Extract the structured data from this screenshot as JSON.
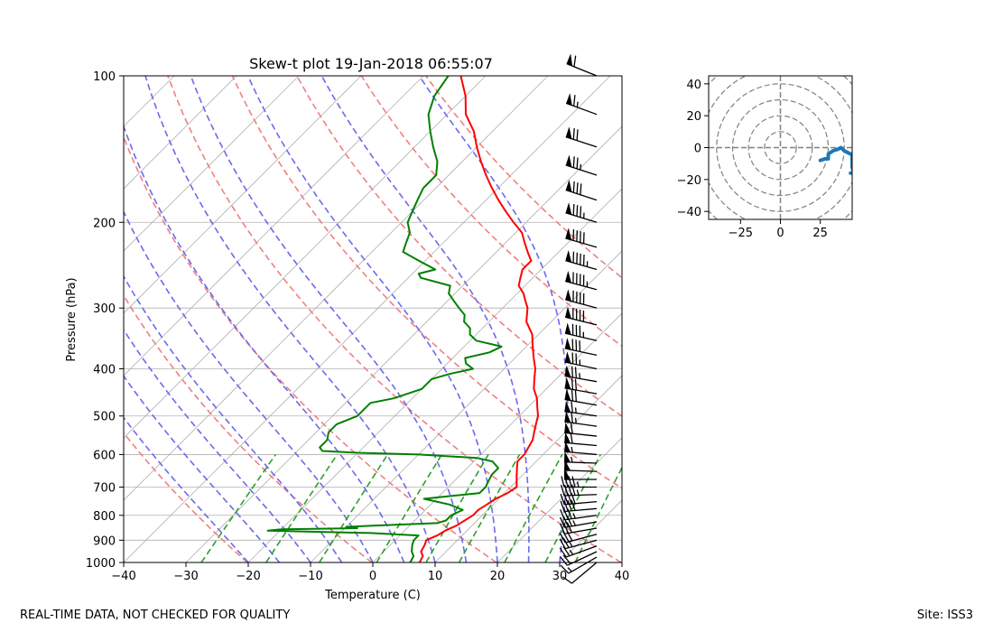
{
  "chart_data": [
    {
      "type": "line",
      "title": "Skew-t plot 19-Jan-2018 06:55:07",
      "xlabel": "Temperature (C)",
      "ylabel": "Pressure (hPa)",
      "x_ticks": [
        -40,
        -30,
        -20,
        -10,
        0,
        10,
        20,
        30,
        40
      ],
      "y_ticks": [
        100,
        200,
        300,
        400,
        500,
        600,
        700,
        800,
        900,
        1000
      ],
      "xlim": [
        -40,
        40
      ],
      "ylim": [
        1000,
        100
      ],
      "y_scale": "log",
      "grid": true,
      "isotherm_skew_degrees": 45,
      "dry_adiabat_theta_K": [
        253,
        273,
        293,
        313,
        333,
        353,
        373,
        393
      ],
      "moist_adiabat_start_temp_C": [
        -20,
        -15,
        -10,
        -5,
        0,
        5,
        10,
        15,
        20,
        25,
        30
      ],
      "mixing_ratio_g_per_kg": [
        0.4,
        1,
        2,
        4,
        7,
        10,
        16,
        24,
        32
      ],
      "series": [
        {
          "color": "#ff0000",
          "points": [
            [
              1000,
              7.5
            ],
            [
              970,
              7
            ],
            [
              950,
              6
            ],
            [
              920,
              5.5
            ],
            [
              900,
              5
            ],
            [
              880,
              6
            ],
            [
              860,
              6.5
            ],
            [
              840,
              7.5
            ],
            [
              820,
              8
            ],
            [
              800,
              8.5
            ],
            [
              780,
              8.5
            ],
            [
              760,
              9
            ],
            [
              740,
              9.5
            ],
            [
              720,
              10.5
            ],
            [
              700,
              11
            ],
            [
              680,
              10
            ],
            [
              660,
              9
            ],
            [
              640,
              8
            ],
            [
              620,
              7
            ],
            [
              600,
              7
            ],
            [
              580,
              6.5
            ],
            [
              560,
              6
            ],
            [
              540,
              5
            ],
            [
              520,
              4
            ],
            [
              500,
              3
            ],
            [
              480,
              1.5
            ],
            [
              460,
              0
            ],
            [
              440,
              -2
            ],
            [
              420,
              -3.5
            ],
            [
              400,
              -5
            ],
            [
              380,
              -7
            ],
            [
              360,
              -9
            ],
            [
              340,
              -11
            ],
            [
              320,
              -14
            ],
            [
              300,
              -16
            ],
            [
              290,
              -17.5
            ],
            [
              280,
              -19
            ],
            [
              270,
              -21
            ],
            [
              260,
              -22
            ],
            [
              250,
              -23
            ],
            [
              240,
              -23
            ],
            [
              230,
              -25
            ],
            [
              220,
              -27
            ],
            [
              210,
              -29
            ],
            [
              200,
              -32
            ],
            [
              190,
              -35
            ],
            [
              180,
              -38
            ],
            [
              170,
              -41
            ],
            [
              160,
              -44
            ],
            [
              150,
              -47
            ],
            [
              140,
              -50
            ],
            [
              130,
              -53
            ],
            [
              120,
              -57
            ],
            [
              110,
              -60
            ],
            [
              100,
              -64
            ]
          ]
        },
        {
          "color": "#008000",
          "points": [
            [
              1000,
              6
            ],
            [
              970,
              5.5
            ],
            [
              950,
              4.5
            ],
            [
              920,
              3.5
            ],
            [
              900,
              3
            ],
            [
              880,
              3
            ],
            [
              870,
              -5
            ],
            [
              860,
              -22
            ],
            [
              855,
              -20
            ],
            [
              850,
              -8
            ],
            [
              845,
              -10
            ],
            [
              840,
              -6
            ],
            [
              830,
              4
            ],
            [
              820,
              5
            ],
            [
              800,
              5
            ],
            [
              780,
              6
            ],
            [
              760,
              3
            ],
            [
              740,
              -2
            ],
            [
              730,
              2
            ],
            [
              720,
              6
            ],
            [
              700,
              6
            ],
            [
              680,
              5.5
            ],
            [
              660,
              5
            ],
            [
              640,
              5
            ],
            [
              620,
              3
            ],
            [
              610,
              0
            ],
            [
              600,
              -10
            ],
            [
              595,
              -20
            ],
            [
              590,
              -26
            ],
            [
              580,
              -27
            ],
            [
              560,
              -27
            ],
            [
              540,
              -28
            ],
            [
              520,
              -28
            ],
            [
              500,
              -26
            ],
            [
              480,
              -26
            ],
            [
              470,
              -26
            ],
            [
              460,
              -23
            ],
            [
              440,
              -20
            ],
            [
              420,
              -20
            ],
            [
              410,
              -18
            ],
            [
              400,
              -15
            ],
            [
              390,
              -17
            ],
            [
              380,
              -18
            ],
            [
              370,
              -15
            ],
            [
              360,
              -14
            ],
            [
              350,
              -19
            ],
            [
              340,
              -21
            ],
            [
              330,
              -22
            ],
            [
              320,
              -24
            ],
            [
              310,
              -25
            ],
            [
              300,
              -27
            ],
            [
              290,
              -29
            ],
            [
              280,
              -31
            ],
            [
              270,
              -32
            ],
            [
              260,
              -38
            ],
            [
              255,
              -39
            ],
            [
              250,
              -37
            ],
            [
              240,
              -41
            ],
            [
              230,
              -45
            ],
            [
              220,
              -46
            ],
            [
              210,
              -47
            ],
            [
              200,
              -49
            ],
            [
              190,
              -50
            ],
            [
              180,
              -51
            ],
            [
              170,
              -52
            ],
            [
              160,
              -52
            ],
            [
              150,
              -54
            ],
            [
              140,
              -57
            ],
            [
              130,
              -60
            ],
            [
              120,
              -63
            ],
            [
              110,
              -65
            ],
            [
              100,
              -66
            ]
          ]
        }
      ],
      "wind_barbs": [
        {
          "p": 1000,
          "spd": 10,
          "dir": 230
        },
        {
          "p": 975,
          "spd": 15,
          "dir": 240
        },
        {
          "p": 950,
          "spd": 20,
          "dir": 245
        },
        {
          "p": 925,
          "spd": 25,
          "dir": 250
        },
        {
          "p": 900,
          "spd": 25,
          "dir": 255
        },
        {
          "p": 875,
          "spd": 30,
          "dir": 255
        },
        {
          "p": 850,
          "spd": 30,
          "dir": 260
        },
        {
          "p": 825,
          "spd": 35,
          "dir": 260
        },
        {
          "p": 800,
          "spd": 35,
          "dir": 262
        },
        {
          "p": 775,
          "spd": 40,
          "dir": 265
        },
        {
          "p": 750,
          "spd": 40,
          "dir": 265
        },
        {
          "p": 725,
          "spd": 45,
          "dir": 268
        },
        {
          "p": 700,
          "spd": 45,
          "dir": 270
        },
        {
          "p": 675,
          "spd": 50,
          "dir": 270
        },
        {
          "p": 650,
          "spd": 50,
          "dir": 272
        },
        {
          "p": 625,
          "spd": 55,
          "dir": 272
        },
        {
          "p": 600,
          "spd": 55,
          "dir": 275
        },
        {
          "p": 575,
          "spd": 60,
          "dir": 275
        },
        {
          "p": 550,
          "spd": 60,
          "dir": 276
        },
        {
          "p": 525,
          "spd": 65,
          "dir": 278
        },
        {
          "p": 500,
          "spd": 65,
          "dir": 278
        },
        {
          "p": 475,
          "spd": 70,
          "dir": 280
        },
        {
          "p": 450,
          "spd": 70,
          "dir": 280
        },
        {
          "p": 425,
          "spd": 75,
          "dir": 280
        },
        {
          "p": 400,
          "spd": 75,
          "dir": 282
        },
        {
          "p": 375,
          "spd": 80,
          "dir": 282
        },
        {
          "p": 350,
          "spd": 85,
          "dir": 283
        },
        {
          "p": 325,
          "spd": 90,
          "dir": 284
        },
        {
          "p": 300,
          "spd": 90,
          "dir": 285
        },
        {
          "p": 275,
          "spd": 95,
          "dir": 285
        },
        {
          "p": 250,
          "spd": 95,
          "dir": 286
        },
        {
          "p": 225,
          "spd": 90,
          "dir": 286
        },
        {
          "p": 200,
          "spd": 85,
          "dir": 287
        },
        {
          "p": 180,
          "spd": 80,
          "dir": 288
        },
        {
          "p": 160,
          "spd": 75,
          "dir": 288
        },
        {
          "p": 140,
          "spd": 70,
          "dir": 288
        },
        {
          "p": 120,
          "spd": 65,
          "dir": 290
        },
        {
          "p": 100,
          "spd": 60,
          "dir": 292
        }
      ]
    },
    {
      "type": "line",
      "title": "",
      "x_ticks": [
        -25,
        0,
        25
      ],
      "y_ticks": [
        -40,
        -20,
        0,
        20,
        40
      ],
      "xlim": [
        -45,
        45
      ],
      "ylim": [
        -45,
        45
      ],
      "range_rings": [
        10,
        20,
        30,
        40,
        50,
        60
      ],
      "series": [
        {
          "color": "#1f77b4",
          "x": [
            25,
            28,
            30,
            30,
            33,
            36,
            38,
            40,
            42,
            44,
            45,
            45,
            46,
            45,
            44
          ],
          "y": [
            -8,
            -7,
            -7,
            -4,
            -2,
            -1,
            0,
            -2,
            -3,
            -4,
            -4,
            -12,
            -16,
            -16,
            -16
          ]
        }
      ]
    }
  ],
  "footer": {
    "left": "REAL-TIME DATA, NOT CHECKED FOR QUALITY",
    "right": "Site: ISS3"
  }
}
